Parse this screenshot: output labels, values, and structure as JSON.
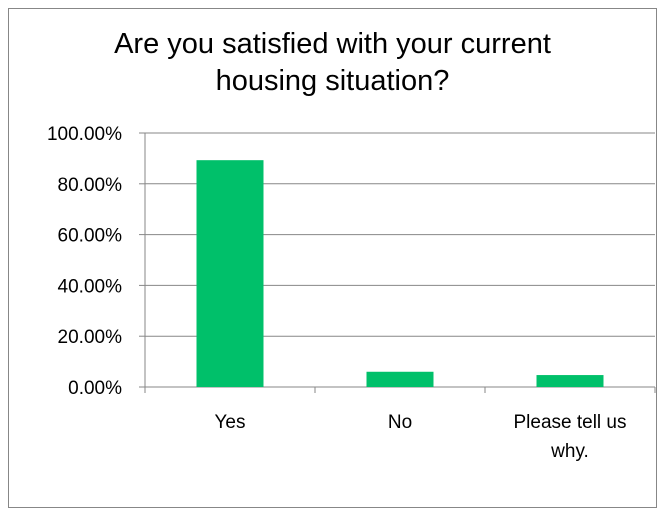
{
  "chart_data": {
    "type": "bar",
    "title_lines": [
      "Are you satisfied with your current",
      "housing situation?"
    ],
    "categories": [
      "Yes",
      "No",
      "Please tell us why."
    ],
    "category_label_lines": [
      [
        "Yes"
      ],
      [
        "No"
      ],
      [
        "Please tell us",
        "why."
      ]
    ],
    "values": [
      0.893,
      0.06,
      0.047
    ],
    "ylim": [
      0,
      1
    ],
    "y_ticks": [
      0,
      0.2,
      0.4,
      0.6,
      0.8,
      1.0
    ],
    "y_tick_labels": [
      "0.00%",
      "20.00%",
      "40.00%",
      "60.00%",
      "80.00%",
      "100.00%"
    ],
    "xlabel": "",
    "ylabel": "",
    "grid": true,
    "legend": "none",
    "bar_color": "#00c06a",
    "grid_color": "#878787"
  }
}
